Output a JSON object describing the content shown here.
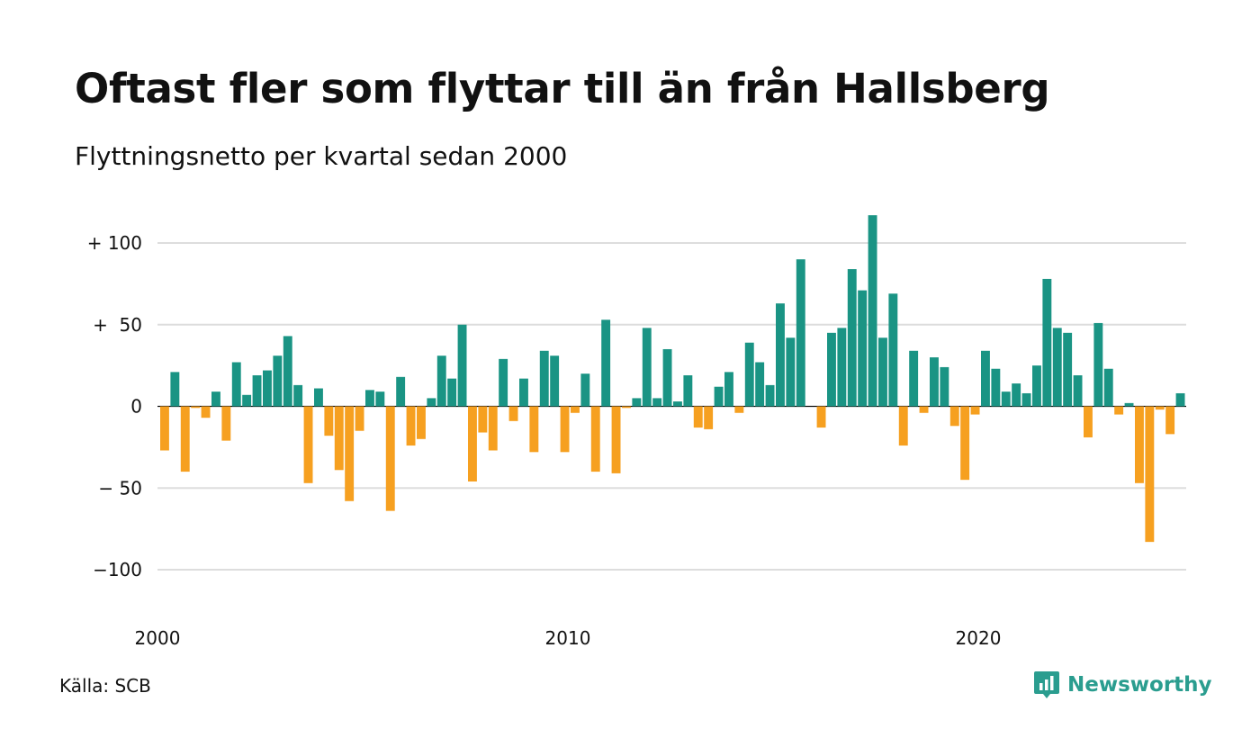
{
  "title": "Oftast fler som flyttar till än från Hallsberg",
  "subtitle": "Flyttningsnetto per kvartal sedan 2000",
  "source": "Källa: SCB",
  "brand": {
    "name": "Newsworthy",
    "icon": "newsworthy-logo-icon"
  },
  "colors": {
    "positive": "#1a9484",
    "negative": "#f6a020",
    "grid": "#dddddd",
    "brand": "#2a9d8f"
  },
  "chart_data": {
    "type": "bar",
    "x_start": 2000,
    "x_period": "quarter",
    "xticks": [
      {
        "year": 2000,
        "label": "2000"
      },
      {
        "year": 2010,
        "label": "2010"
      },
      {
        "year": 2020,
        "label": "2020"
      }
    ],
    "yticks": [
      {
        "value": 100,
        "label": "+ 100"
      },
      {
        "value": 50,
        "label": "+  50"
      },
      {
        "value": 0,
        "label": "0"
      },
      {
        "value": -50,
        "label": "− 50"
      },
      {
        "value": -100,
        "label": "−100"
      }
    ],
    "ylim": [
      -120,
      120
    ],
    "grid": true,
    "values": [
      -27,
      21,
      -40,
      -1,
      -7,
      9,
      -21,
      27,
      7,
      19,
      22,
      31,
      43,
      13,
      -47,
      11,
      -18,
      -39,
      -58,
      -15,
      10,
      9,
      -64,
      18,
      -24,
      -20,
      5,
      31,
      17,
      50,
      -46,
      -16,
      -27,
      29,
      -9,
      17,
      -28,
      34,
      31,
      -28,
      -4,
      20,
      -40,
      53,
      -41,
      -1,
      5,
      48,
      5,
      35,
      3,
      19,
      -13,
      -14,
      12,
      21,
      -4,
      39,
      27,
      13,
      63,
      42,
      90,
      0,
      -13,
      45,
      48,
      84,
      71,
      117,
      42,
      69,
      -24,
      34,
      -4,
      30,
      24,
      -12,
      -45,
      -5,
      34,
      23,
      9,
      14,
      8,
      25,
      78,
      48,
      45,
      19,
      -19,
      51,
      23,
      -5,
      2,
      -47,
      -83,
      -2,
      -17,
      8
    ]
  }
}
